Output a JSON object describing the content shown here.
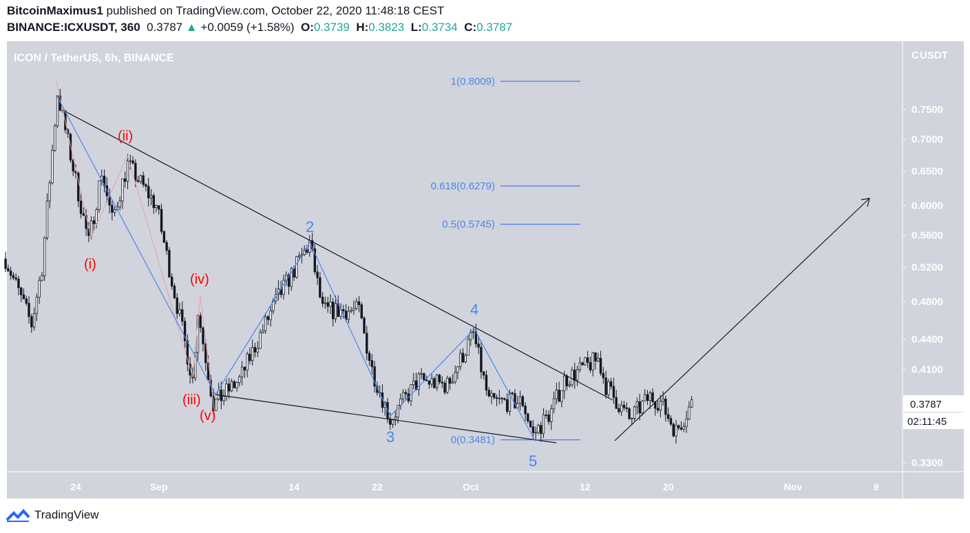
{
  "header": {
    "author": "BitcoinMaximus1",
    "published": "published on TradingView.com, October 22, 2020 11:48:18 CEST",
    "symbol": "BINANCE:ICXUSDT, 360",
    "last": "0.3787",
    "change": "+0.0059 (+1.58%)",
    "o_label": "O:",
    "o": "0.3739",
    "h_label": "H:",
    "h": "0.3823",
    "l_label": "L:",
    "l": "0.3734",
    "c_label": "C:",
    "c": "0.3787"
  },
  "chart_data": {
    "type": "candlestick",
    "title": "ICON / TetherUS, 6h, BINANCE",
    "currency_label": "USDT",
    "currency_prefix": "C",
    "y_scale": "log",
    "ylim": [
      0.318,
      0.86
    ],
    "y_ticks": [
      "0.7500",
      "0.7000",
      "0.6500",
      "0.6000",
      "0.5600",
      "0.5200",
      "0.4800",
      "0.4400",
      "0.4100",
      "0.3300"
    ],
    "y_tick_values": [
      0.75,
      0.7,
      0.65,
      0.6,
      0.56,
      0.52,
      0.48,
      0.44,
      0.41,
      0.33
    ],
    "x_ticks": [
      {
        "label": "24",
        "date": "2020-08-24"
      },
      {
        "label": "Sep",
        "date": "2020-09-01"
      },
      {
        "label": "14",
        "date": "2020-09-14"
      },
      {
        "label": "22",
        "date": "2020-09-22"
      },
      {
        "label": "Oct",
        "date": "2020-10-01"
      },
      {
        "label": "12",
        "date": "2020-10-12"
      },
      {
        "label": "20",
        "date": "2020-10-20"
      },
      {
        "label": "Nov",
        "date": "2020-11-01"
      },
      {
        "label": "9",
        "date": "2020-11-09"
      }
    ],
    "price_path": [
      {
        "t": "2020-08-17T06:00",
        "p": 0.53
      },
      {
        "t": "2020-08-19T18:00",
        "p": 0.455
      },
      {
        "t": "2020-08-20T18:00",
        "p": 0.52
      },
      {
        "t": "2020-08-22T06:00",
        "p": 0.78
      },
      {
        "t": "2020-08-25T06:00",
        "p": 0.55
      },
      {
        "t": "2020-08-26T12:00",
        "p": 0.65
      },
      {
        "t": "2020-08-27T12:00",
        "p": 0.58
      },
      {
        "t": "2020-08-29T00:00",
        "p": 0.66
      },
      {
        "t": "2020-08-31T18:00",
        "p": 0.6
      },
      {
        "t": "2020-09-04T06:00",
        "p": 0.4
      },
      {
        "t": "2020-09-04T18:00",
        "p": 0.47
      },
      {
        "t": "2020-09-06T06:00",
        "p": 0.378
      },
      {
        "t": "2020-09-08T18:00",
        "p": 0.4
      },
      {
        "t": "2020-09-12T06:00",
        "p": 0.48
      },
      {
        "t": "2020-09-15T12:00",
        "p": 0.55
      },
      {
        "t": "2020-09-16T18:00",
        "p": 0.47
      },
      {
        "t": "2020-09-20T06:00",
        "p": 0.47
      },
      {
        "t": "2020-09-21T12:00",
        "p": 0.41
      },
      {
        "t": "2020-09-23T06:00",
        "p": 0.365
      },
      {
        "t": "2020-09-26T00:00",
        "p": 0.4
      },
      {
        "t": "2020-09-28T18:00",
        "p": 0.395
      },
      {
        "t": "2020-10-01T06:00",
        "p": 0.445
      },
      {
        "t": "2020-10-02T18:00",
        "p": 0.38
      },
      {
        "t": "2020-10-06T00:00",
        "p": 0.38
      },
      {
        "t": "2020-10-07T00:00",
        "p": 0.352
      },
      {
        "t": "2020-10-08T18:00",
        "p": 0.372
      },
      {
        "t": "2020-10-10T00:00",
        "p": 0.4
      },
      {
        "t": "2020-10-13T06:00",
        "p": 0.42
      },
      {
        "t": "2020-10-14T00:00",
        "p": 0.395
      },
      {
        "t": "2020-10-16T06:00",
        "p": 0.365
      },
      {
        "t": "2020-10-18T06:00",
        "p": 0.385
      },
      {
        "t": "2020-10-19T06:00",
        "p": 0.38
      },
      {
        "t": "2020-10-20T18:00",
        "p": 0.355
      },
      {
        "t": "2020-10-22T06:00",
        "p": 0.3787
      }
    ],
    "last_price": "0.3787",
    "countdown": "02:11:45",
    "fib_levels": [
      {
        "label": "1(0.8009)",
        "value": 0.8009
      },
      {
        "label": "0.618(0.6279)",
        "value": 0.6279
      },
      {
        "label": "0.5(0.5745)",
        "value": 0.5745
      },
      {
        "label": "0(0.3481)",
        "value": 0.3481
      }
    ],
    "wave_labels_minor": [
      "(i)",
      "(ii)",
      "(iii)",
      "(iv)",
      "(v)"
    ],
    "wave_labels_major": [
      "2",
      "3",
      "4",
      "5"
    ],
    "colors": {
      "background": "#d1d4dc",
      "axis_text": "#ffffff",
      "minor_wave": "#ff0000",
      "major_wave": "#4a86e8",
      "fib": "#2962ff",
      "up_body": "#ffffff",
      "down_body": "#131722"
    }
  },
  "footer": {
    "brand": "TradingView"
  }
}
